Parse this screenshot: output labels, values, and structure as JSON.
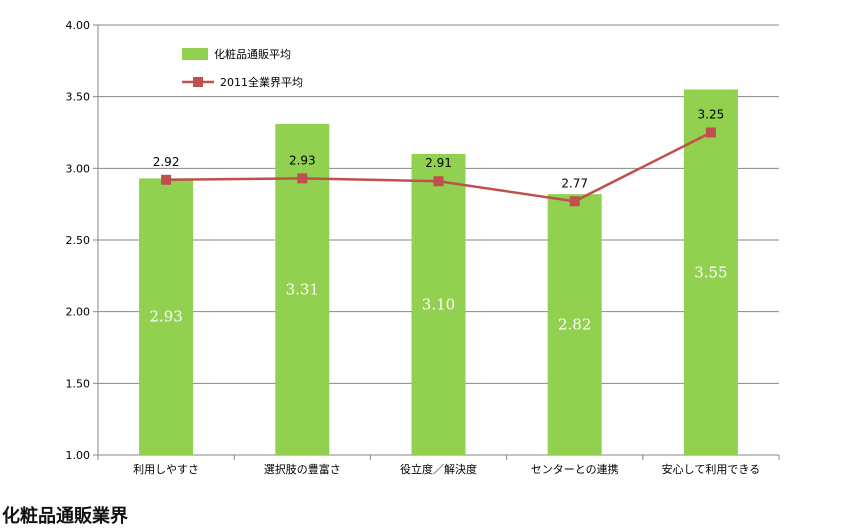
{
  "colors": {
    "bar": "#92D050",
    "line": "#C0504D",
    "grid": "#878787",
    "axis": "#878787"
  },
  "chart_data": {
    "type": "bar",
    "categories": [
      "利用しやすさ",
      "選択肢の豊富さ",
      "役立度／解決度",
      "センターとの連携",
      "安心して利用できる"
    ],
    "series": [
      {
        "name": "化粧品通販平均",
        "type": "bar",
        "values": [
          2.93,
          3.31,
          3.1,
          2.82,
          3.55
        ],
        "labels": [
          "2.93",
          "3.31",
          "3.10",
          "2.82",
          "3.55"
        ]
      },
      {
        "name": "2011全業界平均",
        "type": "line",
        "values": [
          2.92,
          2.93,
          2.91,
          2.77,
          3.25
        ],
        "labels": [
          "2.92",
          "2.93",
          "2.91",
          "2.77",
          "3.25"
        ]
      }
    ],
    "yticks": [
      "1.00",
      "1.50",
      "2.00",
      "2.50",
      "3.00",
      "3.50",
      "4.00"
    ],
    "ylim": [
      1.0,
      4.0
    ],
    "grid": true,
    "legend_position": "top-left"
  },
  "footer": {
    "title": "化粧品通販業界"
  }
}
